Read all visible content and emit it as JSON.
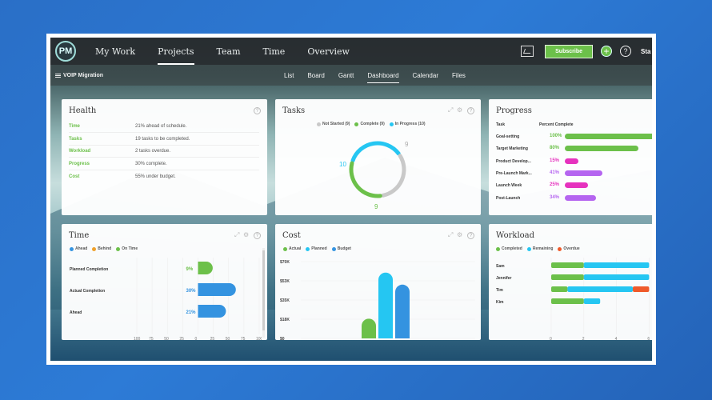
{
  "topbar": {
    "logo": "PM",
    "nav": [
      "My Work",
      "Projects",
      "Team",
      "Time",
      "Overview"
    ],
    "active_nav": 1,
    "subscribe_label": "Subscribe",
    "plus_label": "+",
    "help_label": "?",
    "user_truncated": "Sta"
  },
  "subbar": {
    "project": "VOIP Migration",
    "tabs": [
      "List",
      "Board",
      "Gantt",
      "Dashboard",
      "Calendar",
      "Files"
    ],
    "active_tab": 3
  },
  "colors": {
    "green": "#6cc04a",
    "cyan": "#25c6f2",
    "gray": "#c9c9c9",
    "blue": "#3493e0",
    "orange": "#f0a02a",
    "magenta": "#e632be",
    "purple": "#b565f0",
    "red_orange": "#ef5a2a"
  },
  "health": {
    "title": "Health",
    "rows": [
      {
        "label": "Time",
        "value": "21% ahead of schedule."
      },
      {
        "label": "Tasks",
        "value": "19 tasks to be completed."
      },
      {
        "label": "Workload",
        "value": "2 tasks overdue."
      },
      {
        "label": "Progress",
        "value": "30% complete."
      },
      {
        "label": "Cost",
        "value": "55% under budget."
      }
    ]
  },
  "tasks": {
    "title": "Tasks",
    "legend": [
      "Not Started (9)",
      "Complete (9)",
      "In Progress (10)"
    ],
    "not_started": "9",
    "complete": "9",
    "in_progress": "10"
  },
  "progress": {
    "title": "Progress",
    "col_task": "Task",
    "col_pct": "Percent Complete",
    "rows": [
      {
        "task": "Goal-setting",
        "pct": "100%",
        "value": 1.0,
        "color": "#6cc04a"
      },
      {
        "task": "Target Marketing",
        "pct": "80%",
        "value": 0.8,
        "color": "#6cc04a"
      },
      {
        "task": "Product Develop...",
        "pct": "15%",
        "value": 0.15,
        "color": "#e632be"
      },
      {
        "task": "Pre-Launch Mark...",
        "pct": "41%",
        "value": 0.41,
        "color": "#b565f0"
      },
      {
        "task": "Launch Week",
        "pct": "25%",
        "value": 0.25,
        "color": "#e632be"
      },
      {
        "task": "Post-Launch",
        "pct": "34%",
        "value": 0.34,
        "color": "#b565f0"
      }
    ]
  },
  "time": {
    "title": "Time",
    "legend": [
      "Ahead",
      "Behind",
      "On Time"
    ],
    "rows": [
      {
        "label": "Planned Completion",
        "pct": "9%",
        "value": 9,
        "color": "#6cc04a"
      },
      {
        "label": "Actual Completion",
        "pct": "30%",
        "value": 30,
        "color": "#3493e0"
      },
      {
        "label": "Ahead",
        "pct": "21%",
        "value": 21,
        "color": "#3493e0"
      }
    ],
    "axis": [
      "100",
      "75",
      "50",
      "25",
      "0",
      "25",
      "50",
      "75",
      "100"
    ]
  },
  "cost": {
    "title": "Cost",
    "legend": [
      "Actual",
      "Planned",
      "Budget"
    ],
    "axis": [
      "$70K",
      "$53K",
      "$35K",
      "$18K",
      "$0"
    ]
  },
  "workload": {
    "title": "Workload",
    "legend": [
      "Completed",
      "Remaining",
      "Overdue"
    ],
    "rows": [
      {
        "name": "Sam",
        "completed": 2,
        "remaining": 4,
        "overdue": 0
      },
      {
        "name": "Jennifer",
        "completed": 2,
        "remaining": 4,
        "overdue": 0
      },
      {
        "name": "Tim",
        "completed": 1,
        "remaining": 4,
        "overdue": 1
      },
      {
        "name": "Kim",
        "completed": 2,
        "remaining": 1,
        "overdue": 0
      }
    ],
    "axis": [
      "0",
      "2",
      "4",
      "6"
    ]
  },
  "chart_data": [
    {
      "type": "pie",
      "title": "Tasks",
      "categories": [
        "Not Started",
        "Complete",
        "In Progress"
      ],
      "values": [
        9,
        9,
        10
      ]
    },
    {
      "type": "bar",
      "title": "Time",
      "categories": [
        "Planned Completion",
        "Actual Completion",
        "Ahead"
      ],
      "values": [
        9,
        30,
        21
      ],
      "xlim": [
        -100,
        100
      ]
    },
    {
      "type": "bar",
      "title": "Cost",
      "categories": [
        "Actual",
        "Planned",
        "Budget"
      ],
      "values": [
        18000,
        60000,
        49000
      ],
      "ylim": [
        0,
        70000
      ]
    },
    {
      "type": "bar",
      "title": "Workload",
      "categories": [
        "Sam",
        "Jennifer",
        "Tim",
        "Kim"
      ],
      "series": [
        {
          "name": "Completed",
          "values": [
            2,
            2,
            1,
            2
          ]
        },
        {
          "name": "Remaining",
          "values": [
            4,
            4,
            4,
            1
          ]
        },
        {
          "name": "Overdue",
          "values": [
            0,
            0,
            1,
            0
          ]
        }
      ],
      "xlim": [
        0,
        6
      ]
    }
  ]
}
